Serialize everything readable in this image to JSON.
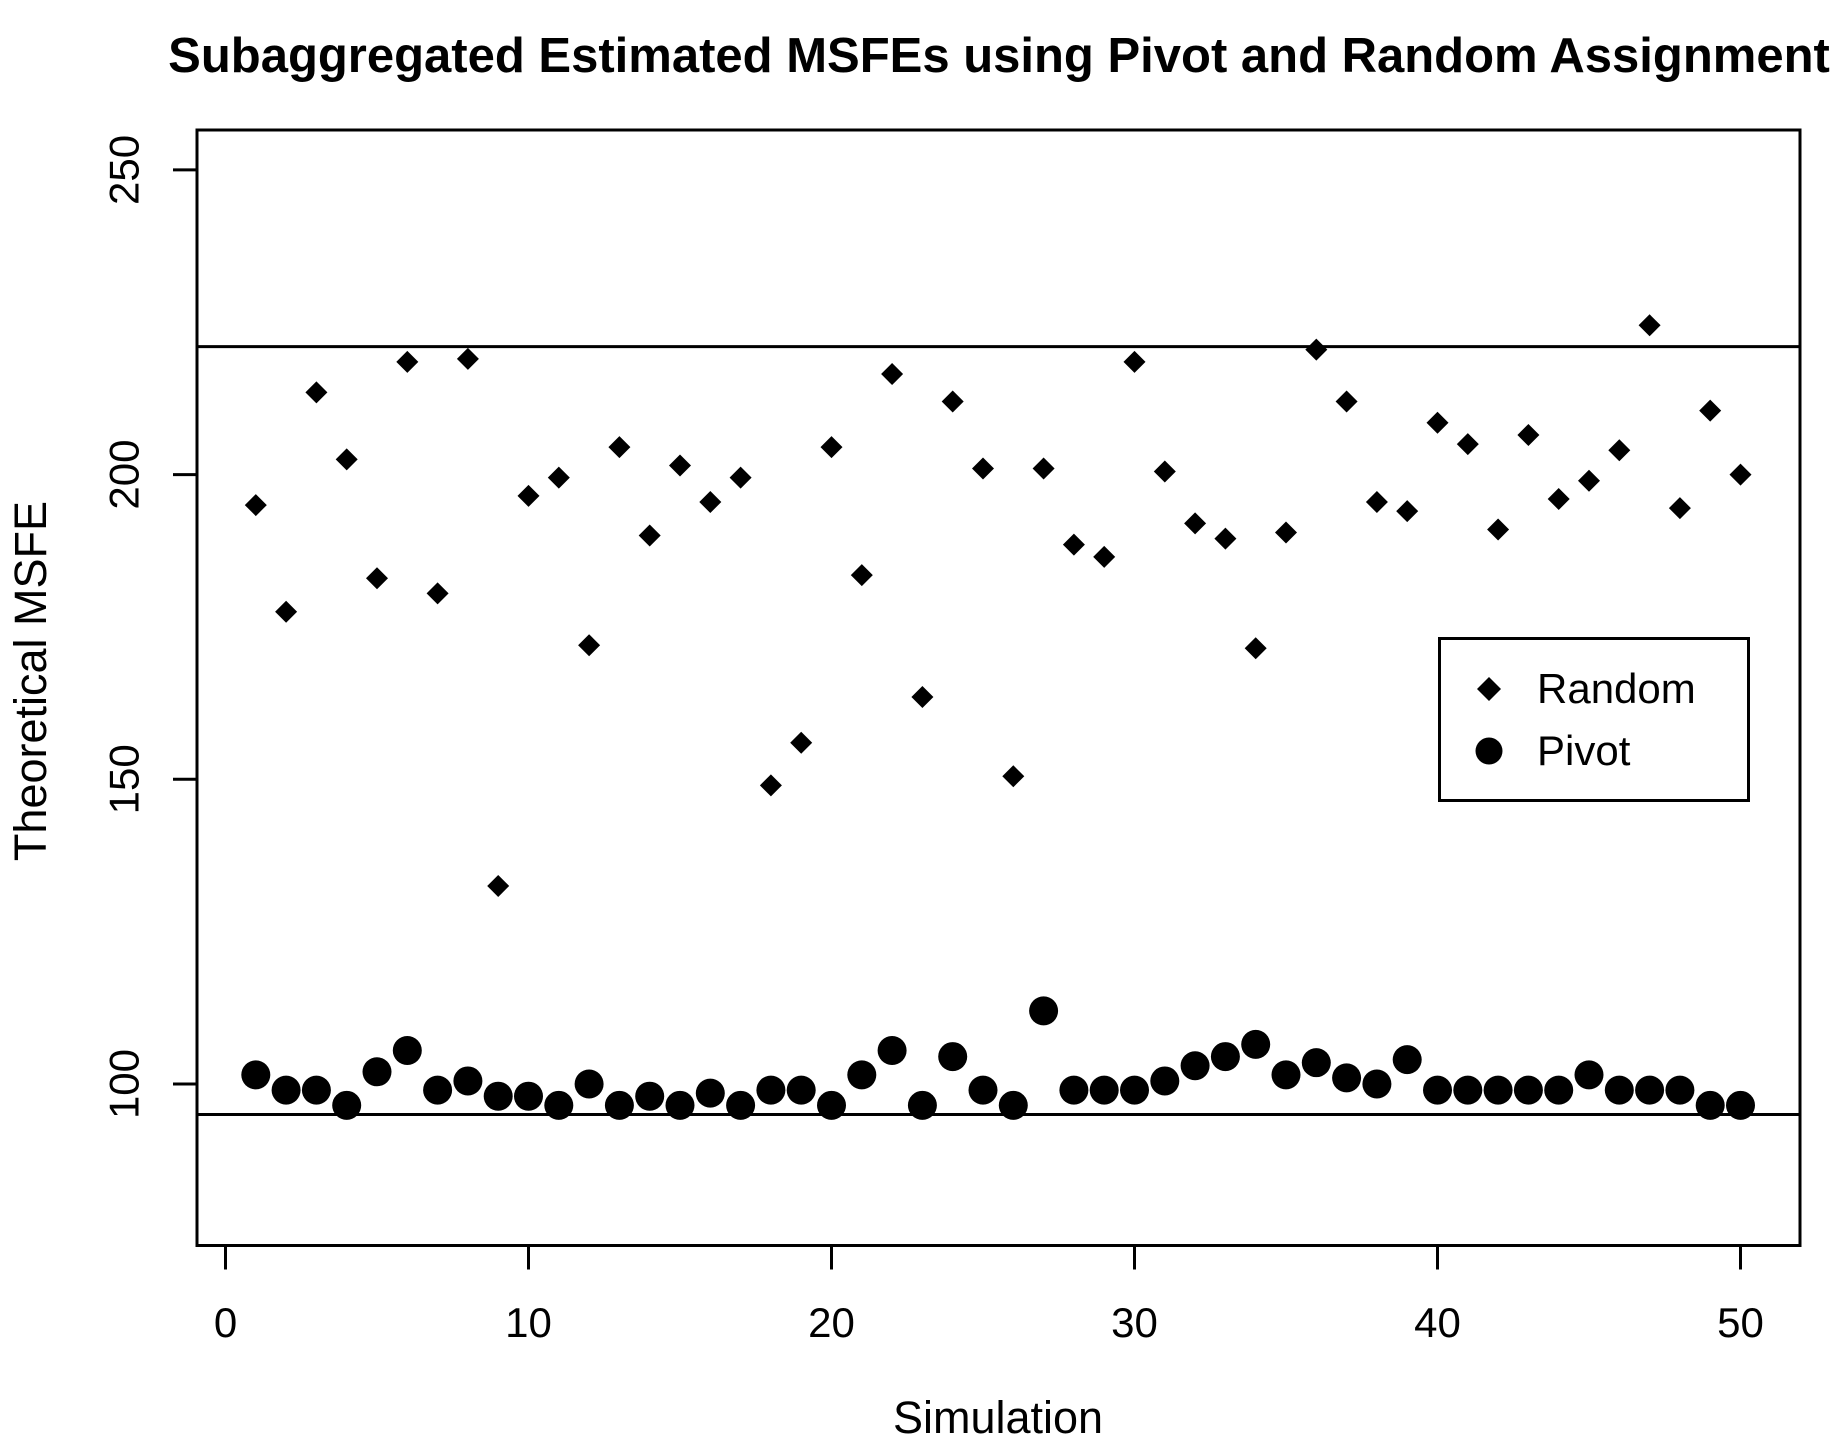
{
  "title": "Subaggregated Estimated MSFEs using Pivot and Random Assignment",
  "colors": {
    "foreground": "#000000",
    "background": "#ffffff"
  },
  "chart_data": {
    "type": "scatter",
    "title": "Subaggregated Estimated MSFEs using Pivot and Random Assignment",
    "xlabel": "Simulation",
    "ylabel": "Theoretical MSFE",
    "grid": false,
    "xticks": [
      0,
      10,
      20,
      30,
      40,
      50
    ],
    "yticks": [
      100,
      150,
      200,
      250
    ],
    "xlim": [
      -0.94,
      51.96
    ],
    "ylim": [
      73.5,
      256.5
    ],
    "hlines": [
      221,
      95
    ],
    "x": [
      1,
      2,
      3,
      4,
      5,
      6,
      7,
      8,
      9,
      10,
      11,
      12,
      13,
      14,
      15,
      16,
      17,
      18,
      19,
      20,
      21,
      22,
      23,
      24,
      25,
      26,
      27,
      28,
      29,
      30,
      31,
      32,
      33,
      34,
      35,
      36,
      37,
      38,
      39,
      40,
      41,
      42,
      43,
      44,
      45,
      46,
      47,
      48,
      49,
      50
    ],
    "series": [
      {
        "name": "Random",
        "marker": "diamond",
        "values": [
          195,
          177.5,
          213.5,
          202.5,
          183,
          218.5,
          180.5,
          219,
          132.5,
          196.5,
          199.5,
          172,
          204.5,
          190,
          201.5,
          195.5,
          199.5,
          149,
          156,
          204.5,
          183.5,
          216.5,
          163.5,
          212,
          201,
          150.5,
          201,
          188.5,
          186.5,
          218.5,
          200.5,
          192,
          189.5,
          171.5,
          190.5,
          220.5,
          212,
          195.5,
          194,
          208.5,
          205,
          191,
          206.5,
          196,
          199,
          204,
          224.5,
          194.5,
          210.5,
          200
        ]
      },
      {
        "name": "Pivot",
        "marker": "circle",
        "values": [
          101.5,
          99,
          99,
          96.5,
          102,
          105.5,
          99,
          100.5,
          98,
          98,
          96.5,
          100,
          96.5,
          98,
          96.5,
          98.5,
          96.5,
          99,
          99,
          96.5,
          101.5,
          105.5,
          96.5,
          104.5,
          99,
          96.5,
          112,
          99,
          99,
          99,
          100.5,
          103,
          104.5,
          106.5,
          101.5,
          103.5,
          101,
          100,
          104,
          99,
          99,
          99,
          99,
          99,
          101.5,
          99,
          99,
          99,
          96.5,
          96.5
        ]
      }
    ],
    "legend": {
      "position": "right-center",
      "items": [
        {
          "label": "Random",
          "marker": "diamond"
        },
        {
          "label": "Pivot",
          "marker": "circle"
        }
      ]
    }
  }
}
